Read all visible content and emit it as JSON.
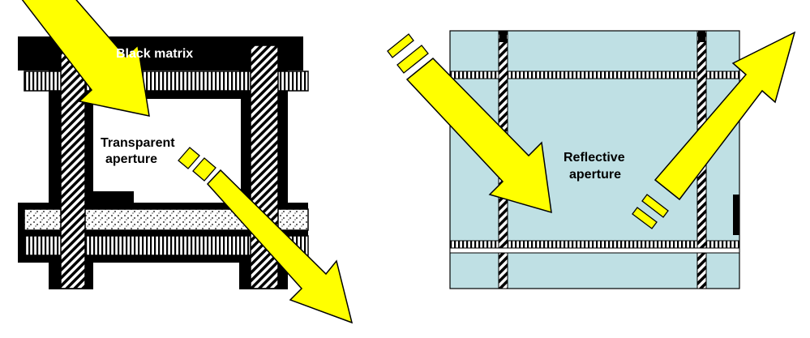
{
  "labels": {
    "black_matrix": "Black matrix",
    "transparent_line1": "Transparent",
    "transparent_line2": "aperture",
    "reflective_line1": "Reflective",
    "reflective_line2": "aperture"
  },
  "colors": {
    "arrow": "#ffff00",
    "black_matrix": "#000000",
    "reflective_panel": "#bfe0e4",
    "panel_outline": "#000000",
    "background": "#ffffff"
  }
}
